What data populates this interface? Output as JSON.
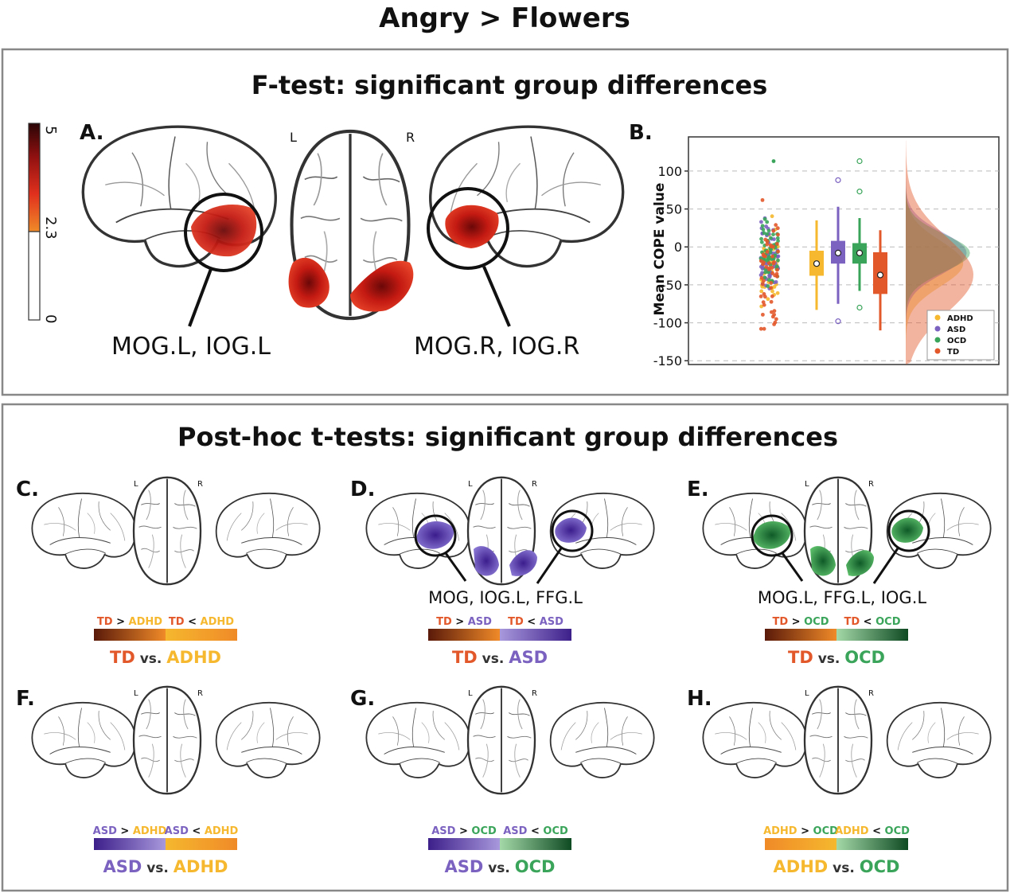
{
  "title": "Angry > Flowers",
  "ftest": {
    "heading": "F-test: significant group differences",
    "panel_a": "A.",
    "panel_b": "B.",
    "colorbar_ticks": [
      "5",
      "2.3",
      "0"
    ],
    "colorbar_colors": [
      "#2a0505",
      "#8e1010",
      "#e0301d",
      "#f08a28"
    ],
    "hemi_left": "L",
    "hemi_right": "R",
    "region_left": "MOG.L, IOG.L",
    "region_right": "MOG.R, IOG.R"
  },
  "chart_data": {
    "type": "scatter",
    "ylabel": "Mean COPE value",
    "yticks": [
      100,
      50,
      0,
      -50,
      -100,
      -150
    ],
    "ylim": [
      -155,
      145
    ],
    "grid": "horizontal dashed",
    "legend_position": "bottom-right",
    "series": [
      {
        "name": "ADHD",
        "color": "#f5b82e",
        "box": {
          "q1": -38,
          "median": -22,
          "q3": -5,
          "whisker_low": -83,
          "whisker_high": 35,
          "mean": -22
        }
      },
      {
        "name": "ASD",
        "color": "#7b62c0",
        "box": {
          "q1": -22,
          "median": -8,
          "q3": 8,
          "whisker_low": -75,
          "whisker_high": 53,
          "mean": -8
        },
        "outliers": [
          88,
          -98
        ]
      },
      {
        "name": "OCD",
        "color": "#3aa55a",
        "box": {
          "q1": -22,
          "median": -8,
          "q3": 5,
          "whisker_low": -58,
          "whisker_high": 38,
          "mean": -8
        },
        "outliers": [
          113,
          73,
          -80
        ]
      },
      {
        "name": "TD",
        "color": "#e2582a",
        "box": {
          "q1": -62,
          "median": -37,
          "q3": -7,
          "whisker_low": -110,
          "whisker_high": 22,
          "mean": -37
        }
      }
    ]
  },
  "posthoc": {
    "heading": "Post-hoc t-tests: significant group differences",
    "panels": [
      {
        "letter": "C.",
        "a": "TD",
        "b": "ADHD",
        "a_color": "#e2582a",
        "b_color": "#f5b82e",
        "region": ""
      },
      {
        "letter": "D.",
        "a": "TD",
        "b": "ASD",
        "a_color": "#e2582a",
        "b_color": "#7b62c0",
        "region": "MOG, IOG.L, FFG.L"
      },
      {
        "letter": "E.",
        "a": "TD",
        "b": "OCD",
        "a_color": "#e2582a",
        "b_color": "#3aa55a",
        "region": "MOG.L, FFG.L, IOG.L"
      },
      {
        "letter": "F.",
        "a": "ASD",
        "b": "ADHD",
        "a_color": "#7b62c0",
        "b_color": "#f5b82e",
        "region": ""
      },
      {
        "letter": "G.",
        "a": "ASD",
        "b": "OCD",
        "a_color": "#7b62c0",
        "b_color": "#3aa55a",
        "region": ""
      },
      {
        "letter": "H.",
        "a": "ADHD",
        "b": "OCD",
        "a_color": "#f5b82e",
        "b_color": "#3aa55a",
        "region": ""
      }
    ],
    "gt": ">",
    "lt": "<",
    "vs": "vs."
  },
  "gradients": {
    "TD": [
      "#5a1a0a",
      "#f08a28"
    ],
    "ADHD": [
      "#f08a28",
      "#f5b82e"
    ],
    "ASD": [
      "#3d1f8a",
      "#a898dc"
    ],
    "OCD": [
      "#a4d8a8",
      "#0e4a22"
    ]
  }
}
